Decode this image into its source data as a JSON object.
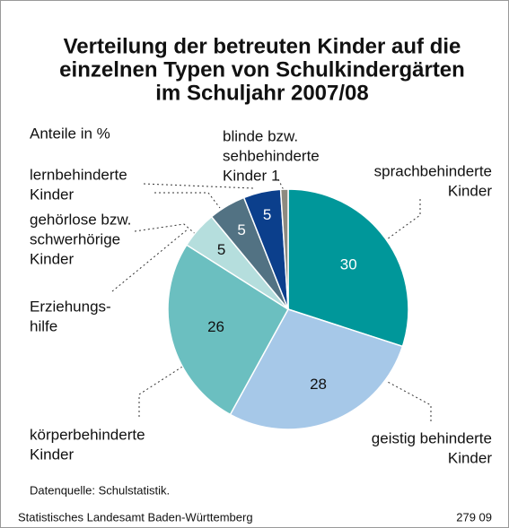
{
  "chart_data": {
    "type": "pie",
    "title": [
      "Verteilung der betreuten Kinder auf die",
      "einzelnen Typen von Schulkindergärten",
      "im Schuljahr 2007/08"
    ],
    "subtitle": "Anteile in %",
    "categories": [
      [
        "sprachbehinderte",
        "Kinder"
      ],
      [
        "geistig behinderte",
        "Kinder"
      ],
      [
        "körperbehinderte",
        "Kinder"
      ],
      [
        "Erziehungs-",
        "hilfe"
      ],
      [
        "gehörlose bzw.",
        "schwerhörige",
        "Kinder"
      ],
      [
        "lernbehinderte",
        "Kinder"
      ],
      [
        "blinde bzw.",
        "sehbehinderte",
        "Kinder"
      ]
    ],
    "values": [
      30,
      28,
      26,
      5,
      5,
      5,
      1
    ],
    "colors": [
      "#00979a",
      "#a6c8e8",
      "#6bbfc0",
      "#b5dedd",
      "#527283",
      "#0b3f8c",
      "#8d8a80"
    ],
    "source": "Datenquelle: Schulstatistik.",
    "footer_left": "Statistisches Landesamt Baden-Württemberg",
    "footer_right": "279 09"
  }
}
